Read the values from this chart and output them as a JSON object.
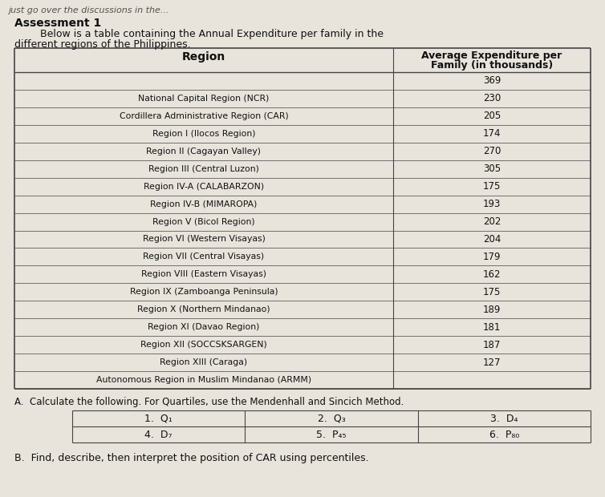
{
  "title": "Assessment 1",
  "subtitle1": "     Below is a table containing the Annual Expenditure per family in the",
  "subtitle2": "different regions of the Philippines.",
  "col1_header": "Region",
  "col2_header": "Average Expenditure per\nFamily (in thousands)",
  "rows": [
    [
      "",
      "369"
    ],
    [
      "National Capital Region (NCR)",
      "230"
    ],
    [
      "Cordillera Administrative Region (CAR)",
      "205"
    ],
    [
      "Region I (Ilocos Region)",
      "174"
    ],
    [
      "Region II (Cagayan Valley)",
      "270"
    ],
    [
      "Region III (Central Luzon)",
      "305"
    ],
    [
      "Region IV-A (CALABARZON)",
      "175"
    ],
    [
      "Region IV-B (MIMAROPA)",
      "193"
    ],
    [
      "Region V (Bicol Region)",
      "202"
    ],
    [
      "Region VI (Western Visayas)",
      "204"
    ],
    [
      "Region VII (Central Visayas)",
      "179"
    ],
    [
      "Region VIII (Eastern Visayas)",
      "162"
    ],
    [
      "Region IX (Zamboanga Peninsula)",
      "175"
    ],
    [
      "Region X (Northern Mindanao)",
      "189"
    ],
    [
      "Region XI (Davao Region)",
      "181"
    ],
    [
      "Region XII (SOCCSKSARGEN)",
      "187"
    ],
    [
      "Region XIII (Caraga)",
      "127"
    ],
    [
      "Autonomous Region in Muslim Mindanao (ARMM)",
      ""
    ]
  ],
  "section_a_intro": "A.  Calculate the following. For Quartiles, use the Mendenhall and Sincich Method.",
  "items_row1": [
    "1.  Q₁",
    "2.  Q₃",
    "3.  D₄"
  ],
  "items_row2": [
    "4.  D₇",
    "5.  P₄₅",
    "6.  P₈₀"
  ],
  "section_b": "B.  Find, describe, then interpret the position of CAR using percentiles.",
  "partial_top": "just go over the discussions in the...",
  "bg_color": "#e8e4dc",
  "table_bg": "#ddd8cc",
  "text_color": "#111111",
  "line_color": "#444444"
}
